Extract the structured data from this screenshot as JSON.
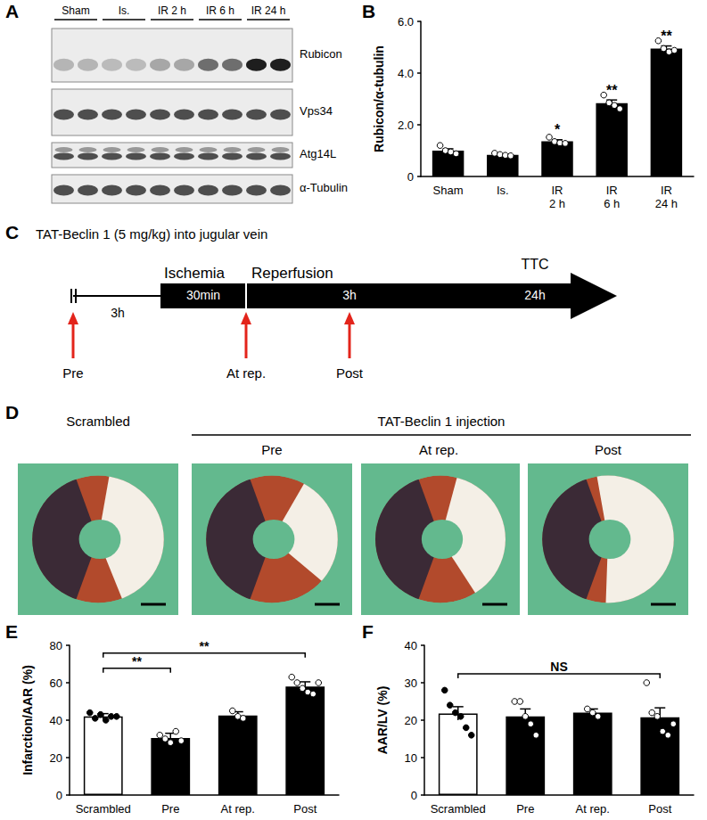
{
  "panels": {
    "A": {
      "letter": "A",
      "lanes": [
        "Sham",
        "Is.",
        "IR 2 h",
        "IR 6 h",
        "IR 24 h"
      ],
      "rows": [
        "Rubicon",
        "Vps34",
        "Atg14L",
        "α-Tubulin"
      ]
    },
    "C": {
      "letter": "C",
      "title": "TAT-Beclin 1 (5 mg/kg) into jugular vein",
      "pre_interval": "3h",
      "ischemia": {
        "label": "Ischemia",
        "duration": "30min"
      },
      "reperfusion": {
        "label": "Reperfusion",
        "duration": "3h"
      },
      "endpoint": {
        "label": "TTC",
        "time": "24h"
      },
      "injections": [
        "Pre",
        "At rep.",
        "Post"
      ]
    },
    "D": {
      "letter": "D",
      "control": "Scrambled",
      "group": "TAT-Beclin 1 injection",
      "conditions": [
        "Pre",
        "At rep.",
        "Post"
      ]
    }
  },
  "chart_data": [
    {
      "panel": "B",
      "type": "bar",
      "y_label": "Rubicon/α-tubulin",
      "categories": [
        "Sham",
        "Is.",
        "IR 2 h",
        "IR 6 h",
        "IR 24 h"
      ],
      "values": [
        1.0,
        0.84,
        1.36,
        2.84,
        4.95
      ],
      "errors": [
        0.07,
        0.02,
        0.06,
        0.12,
        0.1
      ],
      "points": [
        [
          1.2,
          1.0,
          0.95,
          0.88
        ],
        [
          0.9,
          0.85,
          0.82,
          0.8
        ],
        [
          1.52,
          1.35,
          1.3,
          1.28
        ],
        [
          3.15,
          2.85,
          2.75,
          2.62
        ],
        [
          5.25,
          4.95,
          4.82,
          4.88
        ]
      ],
      "significance": [
        null,
        null,
        "*",
        "**",
        "**"
      ],
      "colors": [
        "#000000",
        "#000000",
        "#000000",
        "#000000",
        "#000000"
      ],
      "ylim": [
        0,
        6
      ],
      "yticks": [
        0,
        {
          "value": 2,
          "label": "2.0"
        },
        {
          "value": 4,
          "label": "4.0"
        },
        {
          "value": 6,
          "label": "6.0"
        }
      ],
      "grid": false
    },
    {
      "panel": "E",
      "type": "bar",
      "y_label": "Infarction/AAR (%)",
      "categories": [
        "Scrambled",
        "Pre",
        "At rep.",
        "Post"
      ],
      "values": [
        42,
        30.5,
        42.5,
        58
      ],
      "errors": [
        1.5,
        2.5,
        2,
        2.5
      ],
      "points": [
        [
          44,
          41,
          43,
          40,
          42,
          42
        ],
        [
          32,
          30,
          28,
          34,
          29
        ],
        [
          45,
          42,
          41
        ],
        [
          63,
          60,
          57,
          55,
          54,
          60
        ]
      ],
      "comparisons": [
        {
          "from": "Scrambled",
          "to": "Pre",
          "label": "**"
        },
        {
          "from": "Scrambled",
          "to": "Post",
          "label": "**"
        }
      ],
      "colors": [
        "#ffffff",
        "#000000",
        "#000000",
        "#000000"
      ],
      "ylim": [
        0,
        80
      ],
      "yticks": [
        0,
        20,
        40,
        60,
        80
      ],
      "grid": false
    },
    {
      "panel": "F",
      "type": "bar",
      "y_label": "AAR/LV (%)",
      "categories": [
        "Scrambled",
        "Pre",
        "At rep.",
        "Post"
      ],
      "values": [
        21.8,
        21,
        22,
        20.8
      ],
      "errors": [
        1.8,
        2,
        1,
        2.5
      ],
      "points": [
        [
          28,
          24,
          22,
          21,
          18,
          16
        ],
        [
          25,
          25,
          21,
          19,
          16
        ],
        [
          23,
          22,
          21
        ],
        [
          30,
          22,
          21,
          17,
          16,
          19
        ]
      ],
      "comparisons": [
        {
          "from": "Scrambled",
          "to": "Post",
          "label": "NS"
        }
      ],
      "colors": [
        "#ffffff",
        "#000000",
        "#000000",
        "#000000"
      ],
      "ylim": [
        0,
        40
      ],
      "yticks": [
        0,
        10,
        20,
        30,
        40
      ],
      "grid": false
    }
  ]
}
